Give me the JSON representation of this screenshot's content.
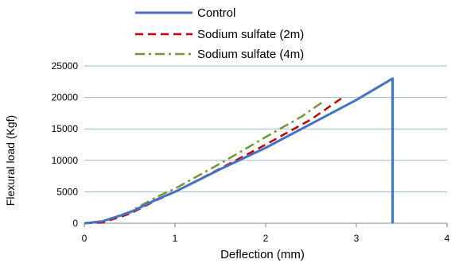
{
  "chart_data": {
    "type": "line",
    "xlabel": "Deflection (mm)",
    "ylabel": "Flexural load (Kgf)",
    "xlim": [
      0,
      4
    ],
    "ylim": [
      0,
      25000
    ],
    "x_ticks": [
      "0",
      "1",
      "2",
      "3",
      "4"
    ],
    "y_ticks": [
      "0",
      "5000",
      "10000",
      "15000",
      "20000",
      "25000"
    ],
    "grid": "horizontal",
    "legend_position": "top",
    "series": [
      {
        "name": "Control",
        "color": "#4472c4",
        "style": "solid",
        "x": [
          0,
          0.2,
          0.5,
          0.8,
          1.0,
          1.5,
          2.0,
          2.5,
          3.0,
          3.4,
          3.4
        ],
        "y": [
          0,
          300,
          1700,
          3800,
          5000,
          8600,
          12000,
          15800,
          19600,
          23000,
          0
        ]
      },
      {
        "name": "Sodium sulfate (2m)",
        "color": "#c00000",
        "style": "dashed",
        "x": [
          0,
          0.2,
          0.5,
          0.8,
          1.0,
          1.5,
          2.0,
          2.5,
          2.85
        ],
        "y": [
          0,
          100,
          1500,
          3700,
          5000,
          8700,
          12500,
          16500,
          20000
        ]
      },
      {
        "name": "Sodium sulfate (4m)",
        "color": "#77933c",
        "style": "dashdot",
        "x": [
          0,
          0.2,
          0.5,
          0.8,
          1.0,
          1.5,
          2.0,
          2.4,
          2.65
        ],
        "y": [
          0,
          300,
          1800,
          4200,
          5500,
          9500,
          13700,
          17000,
          19500
        ]
      }
    ]
  }
}
